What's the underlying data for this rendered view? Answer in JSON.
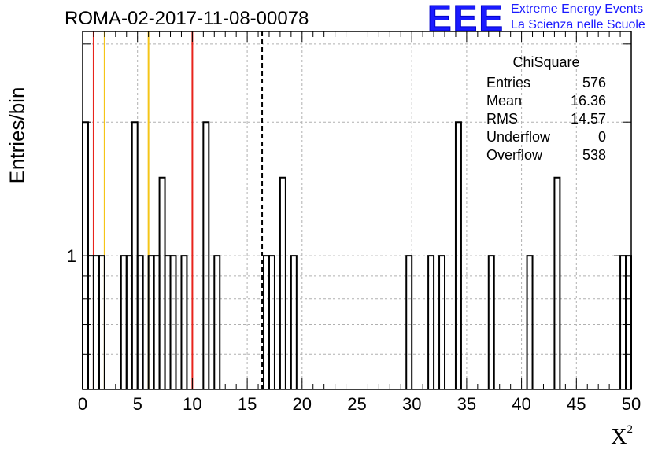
{
  "header": {
    "title": "ROMA-02-2017-11-08-00078"
  },
  "logo": {
    "mark": "EEE",
    "line1": "Extreme Energy Events",
    "line2": "La Scienza nelle Scuole",
    "color": "#1a1aff"
  },
  "stats_box": {
    "title": "ChiSquare",
    "rows": [
      {
        "label": "Entries",
        "value": "576"
      },
      {
        "label": "Mean",
        "value": "16.36"
      },
      {
        "label": "RMS",
        "value": "14.57"
      },
      {
        "label": "Underflow",
        "value": "0"
      },
      {
        "label": "Overflow",
        "value": "538"
      }
    ]
  },
  "chart_data": {
    "type": "bar",
    "histogram": true,
    "title": "ROMA-02-2017-11-08-00078",
    "xlabel": "X",
    "xlabel_superscript": "2",
    "ylabel": "Entries/bin",
    "xlim": [
      0,
      50
    ],
    "ylim": [
      0.5,
      3.2
    ],
    "yscale": "log",
    "grid": true,
    "bin_width": 0.5,
    "x_ticks": [
      0,
      5,
      10,
      15,
      20,
      25,
      30,
      35,
      40,
      45,
      50
    ],
    "x_tick_labels": [
      "0",
      "5",
      "10",
      "15",
      "20",
      "25",
      "30",
      "35",
      "40",
      "45",
      "50"
    ],
    "y_ticks": [
      1
    ],
    "y_tick_labels": [
      "1"
    ],
    "bins": [
      {
        "x": 0.0,
        "y": 2
      },
      {
        "x": 0.5,
        "y": 1
      },
      {
        "x": 1.0,
        "y": 1
      },
      {
        "x": 1.5,
        "y": 1
      },
      {
        "x": 3.5,
        "y": 1
      },
      {
        "x": 4.0,
        "y": 1
      },
      {
        "x": 4.5,
        "y": 2
      },
      {
        "x": 5.0,
        "y": 1
      },
      {
        "x": 6.0,
        "y": 1
      },
      {
        "x": 6.5,
        "y": 1
      },
      {
        "x": 7.0,
        "y": 1.5
      },
      {
        "x": 7.5,
        "y": 1
      },
      {
        "x": 8.0,
        "y": 1
      },
      {
        "x": 9.0,
        "y": 1
      },
      {
        "x": 11.0,
        "y": 2
      },
      {
        "x": 12.0,
        "y": 1
      },
      {
        "x": 16.5,
        "y": 1
      },
      {
        "x": 17.0,
        "y": 1
      },
      {
        "x": 18.0,
        "y": 1.5
      },
      {
        "x": 19.0,
        "y": 1
      },
      {
        "x": 29.5,
        "y": 1
      },
      {
        "x": 31.5,
        "y": 1
      },
      {
        "x": 32.5,
        "y": 1
      },
      {
        "x": 34.0,
        "y": 2
      },
      {
        "x": 37.0,
        "y": 1
      },
      {
        "x": 40.5,
        "y": 1
      },
      {
        "x": 43.0,
        "y": 1.5
      },
      {
        "x": 49.0,
        "y": 1
      },
      {
        "x": 49.5,
        "y": 1
      }
    ],
    "vertical_markers": [
      {
        "x": 1,
        "color": "#e8241c",
        "style": "solid"
      },
      {
        "x": 10,
        "color": "#e8241c",
        "style": "solid"
      },
      {
        "x": 2,
        "color": "#f5c518",
        "style": "solid"
      },
      {
        "x": 6,
        "color": "#f5c518",
        "style": "solid"
      },
      {
        "x": 16.36,
        "color": "#000000",
        "style": "dashed"
      }
    ]
  }
}
